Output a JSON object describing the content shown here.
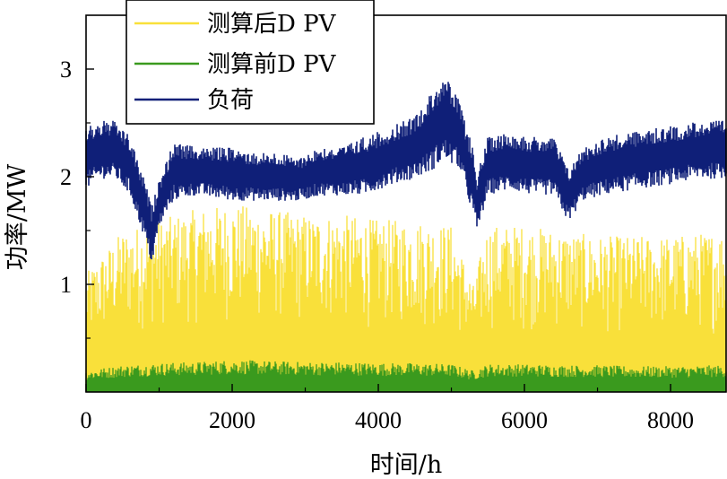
{
  "chart_data": {
    "type": "line",
    "title": "",
    "xlabel": "时间/h",
    "ylabel": "功率/MW",
    "xlim": [
      0,
      8760
    ],
    "ylim": [
      0,
      3.5
    ],
    "xticks": [
      0,
      2000,
      4000,
      6000,
      8000
    ],
    "xtick_labels": [
      "0",
      "2000",
      "4000",
      "6000",
      "8000"
    ],
    "yticks": [
      1,
      2,
      3
    ],
    "ytick_labels": [
      "1",
      "2",
      "3"
    ],
    "grid": false,
    "legend_position": "top-left",
    "series": [
      {
        "name": "测算后D PV",
        "color": "#F9E03A",
        "style": "daily oscillation between ~0 and upper envelope",
        "x": [
          0,
          500,
          1000,
          1500,
          2000,
          2500,
          3000,
          3500,
          4000,
          4500,
          5000,
          5300,
          5500,
          6000,
          6500,
          7000,
          7500,
          8000,
          8760
        ],
        "y_max": [
          1.1,
          1.5,
          1.6,
          1.7,
          1.75,
          1.7,
          1.65,
          1.65,
          1.6,
          1.6,
          1.55,
          1.0,
          1.55,
          1.55,
          1.5,
          1.45,
          1.45,
          1.45,
          1.5
        ]
      },
      {
        "name": "测算前D PV",
        "color": "#3A9A1E",
        "style": "daily oscillation between ~0 and upper envelope",
        "x": [
          0,
          500,
          1000,
          1500,
          2000,
          2500,
          3000,
          3500,
          4000,
          4500,
          5000,
          5300,
          5500,
          6000,
          6500,
          7000,
          7500,
          8000,
          8760
        ],
        "y_max": [
          0.2,
          0.25,
          0.27,
          0.28,
          0.3,
          0.29,
          0.28,
          0.28,
          0.27,
          0.27,
          0.26,
          0.2,
          0.26,
          0.26,
          0.25,
          0.25,
          0.24,
          0.24,
          0.25
        ]
      },
      {
        "name": "负荷",
        "color": "#0F1F78",
        "style": "band (min/max envelope)",
        "x": [
          0,
          200,
          400,
          600,
          800,
          900,
          1000,
          1200,
          1500,
          2000,
          2300,
          2600,
          2900,
          3200,
          3500,
          3800,
          4200,
          4500,
          4700,
          4900,
          5100,
          5300,
          5350,
          5500,
          5800,
          6100,
          6400,
          6600,
          6800,
          7100,
          7500,
          8000,
          8400,
          8760
        ],
        "y_min": [
          1.85,
          1.95,
          1.95,
          1.8,
          1.4,
          1.15,
          1.5,
          1.75,
          1.8,
          1.75,
          1.75,
          1.75,
          1.75,
          1.8,
          1.8,
          1.8,
          1.9,
          1.95,
          2.0,
          2.1,
          2.05,
          1.6,
          1.45,
          1.8,
          1.85,
          1.8,
          1.8,
          1.55,
          1.75,
          1.8,
          1.85,
          1.9,
          1.95,
          1.95
        ],
        "y_max": [
          2.5,
          2.55,
          2.55,
          2.4,
          2.0,
          1.75,
          2.0,
          2.35,
          2.3,
          2.3,
          2.25,
          2.25,
          2.2,
          2.3,
          2.3,
          2.4,
          2.5,
          2.6,
          2.8,
          3.0,
          2.75,
          2.3,
          2.05,
          2.4,
          2.45,
          2.4,
          2.4,
          2.1,
          2.3,
          2.4,
          2.45,
          2.5,
          2.55,
          2.55
        ]
      }
    ]
  }
}
